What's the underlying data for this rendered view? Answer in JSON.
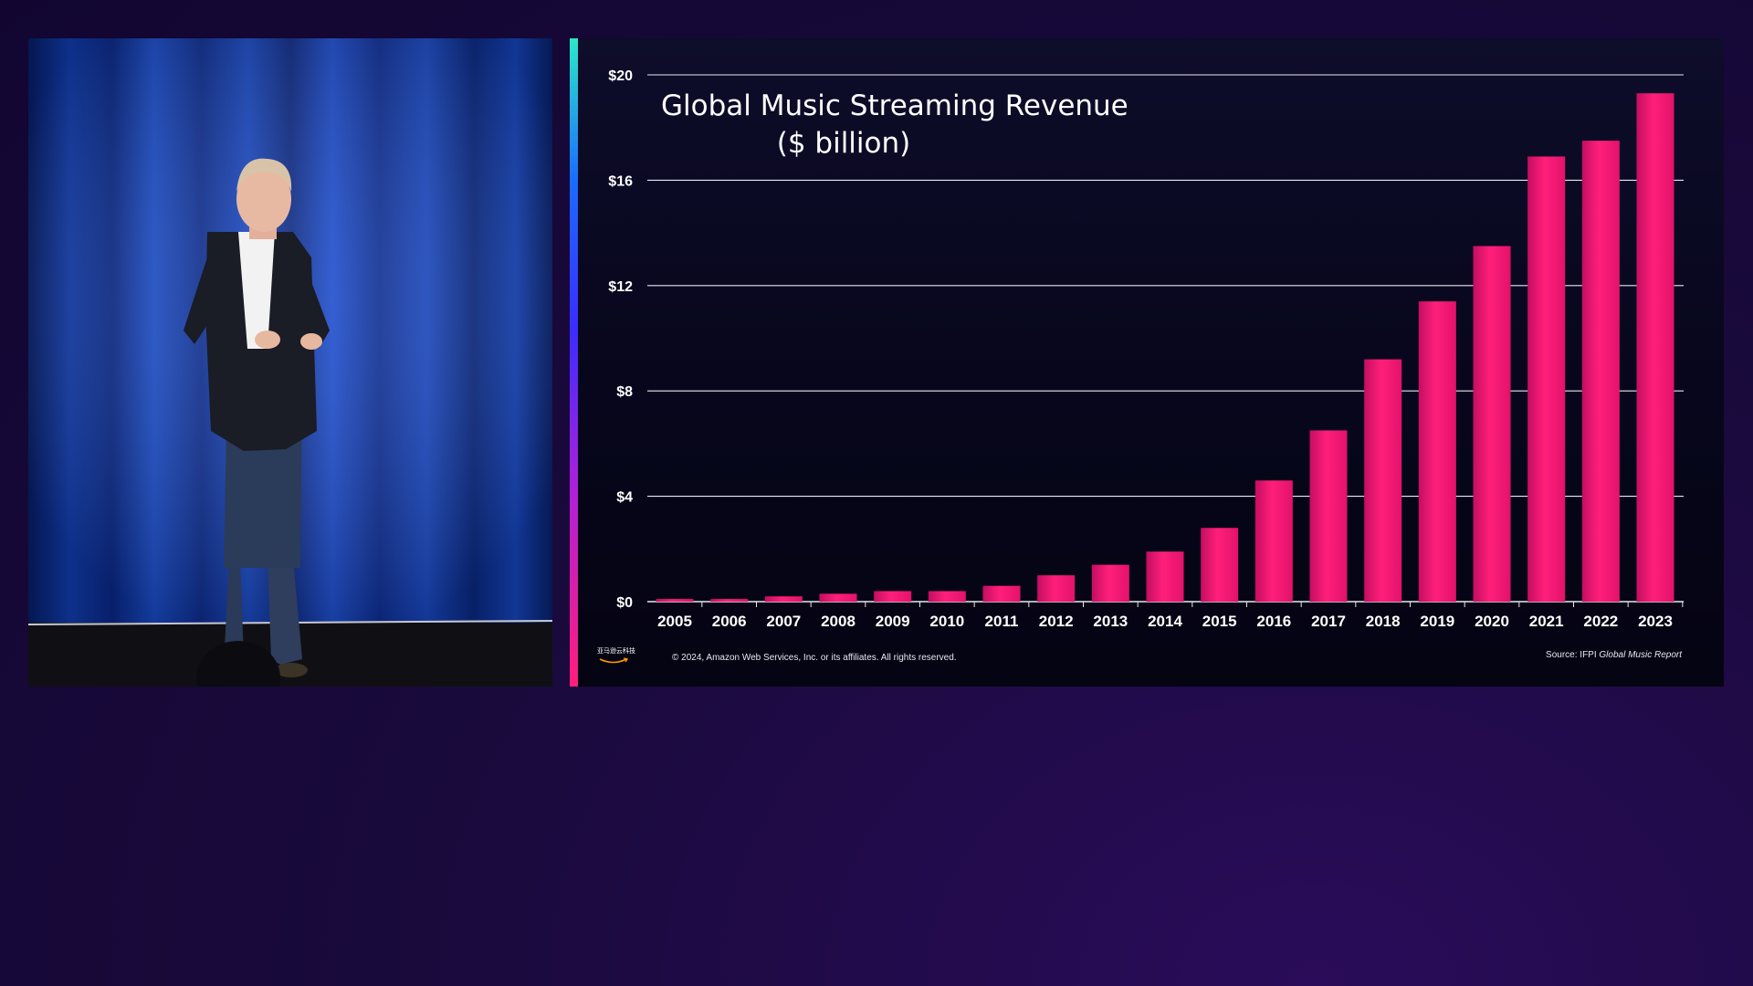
{
  "slide": {
    "title_line1": "Global Music Streaming Revenue",
    "title_line2": "($ billion)",
    "copyright": "© 2024, Amazon Web Services, Inc. or its affiliates. All rights reserved.",
    "source_prefix": "Source: IFPI",
    "source_report": "Global Music Report",
    "logo_text": "亚马逊云科技"
  },
  "colors": {
    "bar": "#ff1f7a",
    "bar_dark": "#c40e62",
    "gridline": "#e8e8f0",
    "label": "#ffffff",
    "background": "#120631"
  },
  "chart_data": {
    "type": "bar",
    "title": "Global Music Streaming Revenue ($ billion)",
    "categories": [
      "2005",
      "2006",
      "2007",
      "2008",
      "2009",
      "2010",
      "2011",
      "2012",
      "2013",
      "2014",
      "2015",
      "2016",
      "2017",
      "2018",
      "2019",
      "2020",
      "2021",
      "2022",
      "2023"
    ],
    "values": [
      0.1,
      0.1,
      0.2,
      0.3,
      0.4,
      0.4,
      0.6,
      1.0,
      1.4,
      1.9,
      2.8,
      4.6,
      6.5,
      9.2,
      11.4,
      13.5,
      16.9,
      17.5,
      19.3
    ],
    "yticks": [
      "$0",
      "$4",
      "$8",
      "$12",
      "$16",
      "$20"
    ],
    "ytick_values": [
      0,
      4,
      8,
      12,
      16,
      20
    ],
    "ylim": [
      0,
      20
    ],
    "grid": true,
    "xlabel": "",
    "ylabel": ""
  }
}
